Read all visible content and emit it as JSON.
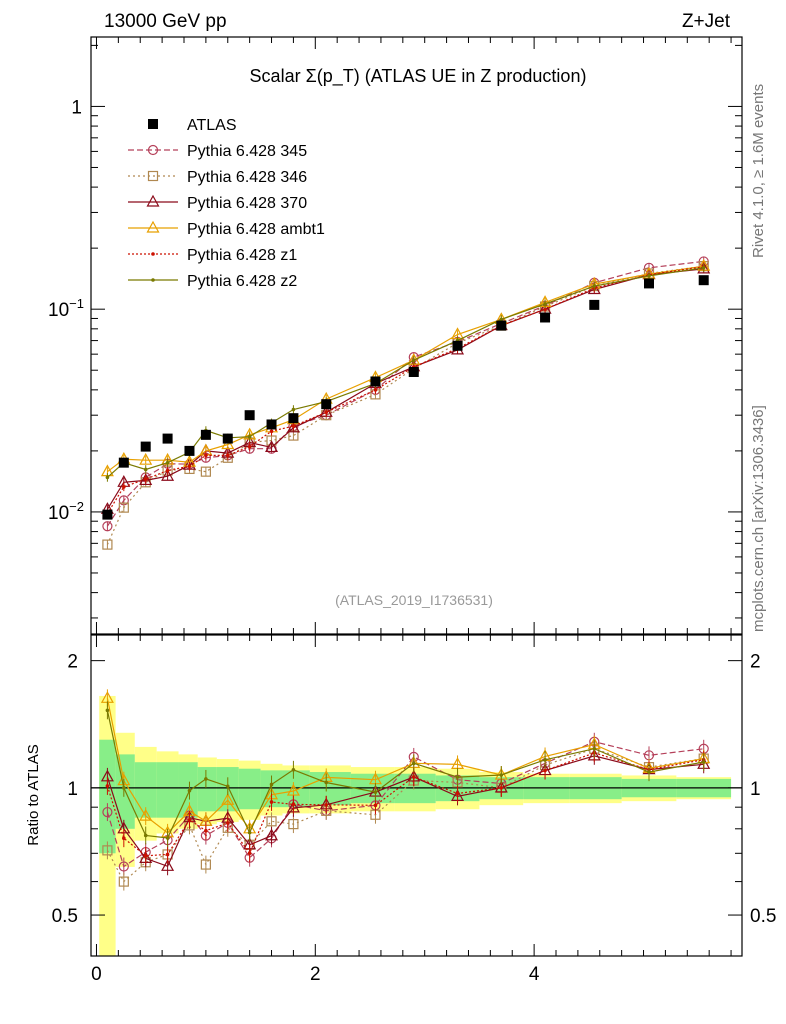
{
  "header": {
    "left": "13000 GeV pp",
    "right": "Z+Jet"
  },
  "side_labels": {
    "top": "Rivet 4.1.0, ≥ 1.6M events",
    "bottom": "mcplots.cern.ch [arXiv:1306.3436]"
  },
  "chart_data": {
    "type": "line",
    "title": "Scalar Σ(p_T) (ATLAS UE in Z production)",
    "watermark": "(ATLAS_2019_I1736531)",
    "xlim": [
      -0.05,
      5.9
    ],
    "ylim_main": [
      0.0025,
      2.2
    ],
    "ylim_ratio": [
      0.4,
      2.3
    ],
    "ylabel_ratio": "Ratio to ATLAS",
    "x_ticks": [
      "0",
      "2",
      "4"
    ],
    "y_ticks_main": [
      "10^{-2}",
      "10^{-1}",
      "1"
    ],
    "y_ticks_ratio": [
      "0.5",
      "1",
      "2"
    ],
    "x": [
      0.1,
      0.25,
      0.45,
      0.65,
      0.85,
      1.0,
      1.2,
      1.4,
      1.6,
      1.8,
      2.1,
      2.55,
      2.9,
      3.3,
      3.7,
      4.1,
      4.55,
      5.05,
      5.55
    ],
    "data": {
      "name": "ATLAS",
      "values": [
        0.0097,
        0.0175,
        0.021,
        0.023,
        0.02,
        0.024,
        0.023,
        0.03,
        0.027,
        0.029,
        0.034,
        0.044,
        0.049,
        0.066,
        0.083,
        0.091,
        0.105,
        0.134,
        0.139
      ]
    },
    "series": [
      {
        "name": "Pythia 6.428 345",
        "color": "#b5405a",
        "dash": "6,3",
        "marker": "circle",
        "values": [
          0.0085,
          0.0114,
          0.0148,
          0.0173,
          0.0172,
          0.0185,
          0.019,
          0.0205,
          0.0205,
          0.0265,
          0.03,
          0.04,
          0.058,
          0.069,
          0.085,
          0.104,
          0.135,
          0.16,
          0.172
        ]
      },
      {
        "name": "Pythia 6.428 346",
        "color": "#b08850",
        "dash": "2,3",
        "marker": "square",
        "values": [
          0.0069,
          0.0105,
          0.014,
          0.016,
          0.0163,
          0.0158,
          0.0185,
          0.022,
          0.0225,
          0.0238,
          0.03,
          0.038,
          0.051,
          0.068,
          0.083,
          0.103,
          0.13,
          0.15,
          0.163
        ]
      },
      {
        "name": "Pythia 6.428 370",
        "color": "#8b0a1a",
        "dash": "",
        "marker": "triangle",
        "values": [
          0.0103,
          0.014,
          0.0143,
          0.015,
          0.017,
          0.02,
          0.0195,
          0.022,
          0.0208,
          0.026,
          0.031,
          0.043,
          0.052,
          0.063,
          0.083,
          0.1,
          0.125,
          0.148,
          0.158
        ]
      },
      {
        "name": "Pythia 6.428 ambt1",
        "color": "#e8a000",
        "dash": "",
        "marker": "triangle",
        "values": [
          0.0158,
          0.0182,
          0.018,
          0.018,
          0.0176,
          0.02,
          0.0215,
          0.024,
          0.026,
          0.0285,
          0.036,
          0.046,
          0.056,
          0.075,
          0.089,
          0.108,
          0.133,
          0.149,
          0.163
        ]
      },
      {
        "name": "Pythia 6.428 z1",
        "color": "#cc1100",
        "dash": "2,2",
        "marker": "dot",
        "values": [
          0.0098,
          0.0133,
          0.0145,
          0.016,
          0.0168,
          0.019,
          0.019,
          0.021,
          0.025,
          0.0265,
          0.031,
          0.04,
          0.052,
          0.064,
          0.083,
          0.1,
          0.127,
          0.148,
          0.162
        ]
      },
      {
        "name": "Pythia 6.428 z2",
        "color": "#7a7a00",
        "dash": "",
        "marker": "dot",
        "values": [
          0.0148,
          0.0175,
          0.0162,
          0.0175,
          0.0197,
          0.0252,
          0.0232,
          0.0235,
          0.0275,
          0.032,
          0.035,
          0.043,
          0.056,
          0.07,
          0.089,
          0.106,
          0.13,
          0.146,
          0.16
        ]
      }
    ],
    "ratio_band_green": [
      0.3,
      0.2,
      0.15,
      0.15,
      0.15,
      0.12,
      0.12,
      0.11,
      0.1,
      0.1,
      0.09,
      0.08,
      0.08,
      0.07,
      0.06,
      0.06,
      0.06,
      0.05,
      0.05
    ],
    "ratio_band_yellow": [
      0.65,
      0.35,
      0.25,
      0.22,
      0.2,
      0.18,
      0.17,
      0.16,
      0.14,
      0.13,
      0.13,
      0.12,
      0.12,
      0.11,
      0.09,
      0.08,
      0.08,
      0.07,
      0.06
    ]
  }
}
